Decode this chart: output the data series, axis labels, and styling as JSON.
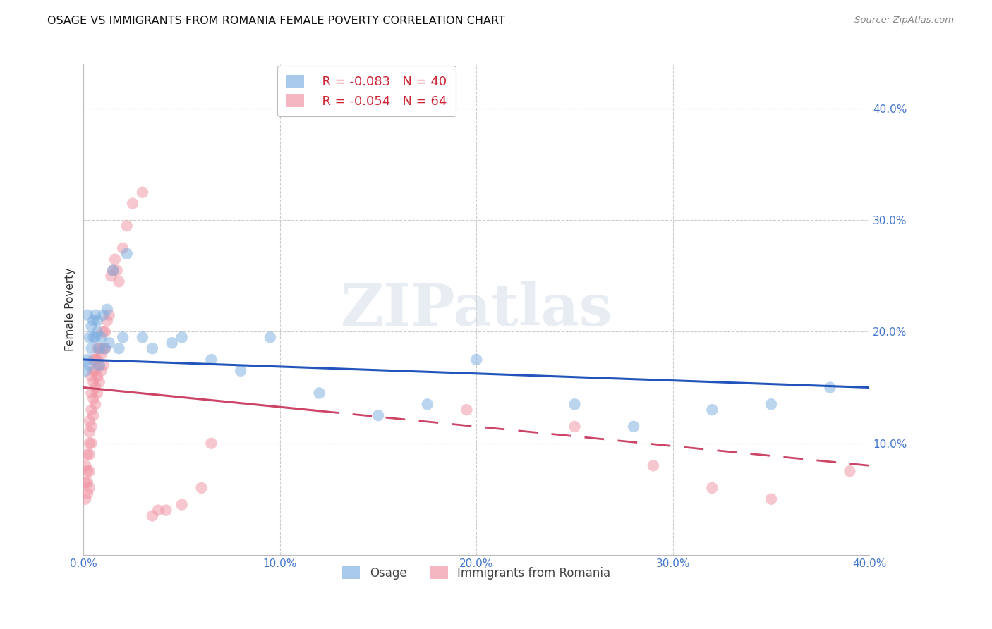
{
  "title": "OSAGE VS IMMIGRANTS FROM ROMANIA FEMALE POVERTY CORRELATION CHART",
  "source": "Source: ZipAtlas.com",
  "ylabel": "Female Poverty",
  "xlim": [
    0.0,
    0.4
  ],
  "ylim": [
    0.0,
    0.44
  ],
  "xtick_vals": [
    0.0,
    0.1,
    0.2,
    0.3,
    0.4
  ],
  "ytick_vals_right": [
    0.1,
    0.2,
    0.3,
    0.4
  ],
  "grid_color": "#cccccc",
  "watermark": "ZIPatlas",
  "legend_label1": "Osage",
  "legend_label2": "Immigrants from Romania",
  "legend_R1": "R = -0.083",
  "legend_N1": "N = 40",
  "legend_R2": "R = -0.054",
  "legend_N2": "N = 64",
  "color_osage": "#7aace0",
  "color_romania": "#f090a0",
  "osage_x": [
    0.001,
    0.002,
    0.002,
    0.003,
    0.003,
    0.004,
    0.004,
    0.005,
    0.005,
    0.006,
    0.006,
    0.007,
    0.007,
    0.008,
    0.008,
    0.009,
    0.01,
    0.011,
    0.012,
    0.013,
    0.015,
    0.018,
    0.02,
    0.022,
    0.03,
    0.035,
    0.045,
    0.05,
    0.065,
    0.08,
    0.095,
    0.12,
    0.15,
    0.175,
    0.2,
    0.25,
    0.28,
    0.32,
    0.35,
    0.38
  ],
  "osage_y": [
    0.165,
    0.175,
    0.215,
    0.17,
    0.195,
    0.185,
    0.205,
    0.195,
    0.21,
    0.195,
    0.215,
    0.2,
    0.21,
    0.17,
    0.185,
    0.195,
    0.215,
    0.185,
    0.22,
    0.19,
    0.255,
    0.185,
    0.195,
    0.27,
    0.195,
    0.185,
    0.19,
    0.195,
    0.175,
    0.165,
    0.195,
    0.145,
    0.125,
    0.135,
    0.175,
    0.135,
    0.115,
    0.13,
    0.135,
    0.15
  ],
  "romania_x": [
    0.001,
    0.001,
    0.001,
    0.002,
    0.002,
    0.002,
    0.002,
    0.003,
    0.003,
    0.003,
    0.003,
    0.003,
    0.003,
    0.004,
    0.004,
    0.004,
    0.004,
    0.004,
    0.005,
    0.005,
    0.005,
    0.005,
    0.005,
    0.006,
    0.006,
    0.006,
    0.006,
    0.007,
    0.007,
    0.007,
    0.007,
    0.008,
    0.008,
    0.008,
    0.009,
    0.009,
    0.01,
    0.01,
    0.01,
    0.011,
    0.011,
    0.012,
    0.013,
    0.014,
    0.015,
    0.016,
    0.017,
    0.018,
    0.02,
    0.022,
    0.025,
    0.03,
    0.035,
    0.038,
    0.042,
    0.05,
    0.06,
    0.065,
    0.195,
    0.25,
    0.29,
    0.32,
    0.35,
    0.39
  ],
  "romania_y": [
    0.05,
    0.065,
    0.08,
    0.055,
    0.065,
    0.075,
    0.09,
    0.06,
    0.075,
    0.09,
    0.1,
    0.11,
    0.12,
    0.1,
    0.115,
    0.13,
    0.145,
    0.16,
    0.125,
    0.14,
    0.155,
    0.165,
    0.175,
    0.135,
    0.15,
    0.165,
    0.175,
    0.145,
    0.16,
    0.175,
    0.185,
    0.155,
    0.17,
    0.185,
    0.165,
    0.18,
    0.17,
    0.185,
    0.2,
    0.185,
    0.2,
    0.21,
    0.215,
    0.25,
    0.255,
    0.265,
    0.255,
    0.245,
    0.275,
    0.295,
    0.315,
    0.325,
    0.035,
    0.04,
    0.04,
    0.045,
    0.06,
    0.1,
    0.13,
    0.115,
    0.08,
    0.06,
    0.05,
    0.075
  ],
  "trend_osage_x0": 0.0,
  "trend_osage_y0": 0.175,
  "trend_osage_x1": 0.4,
  "trend_osage_y1": 0.15,
  "trend_romania_x0": 0.0,
  "trend_romania_y0": 0.15,
  "trend_romania_x1": 0.4,
  "trend_romania_y1": 0.08
}
